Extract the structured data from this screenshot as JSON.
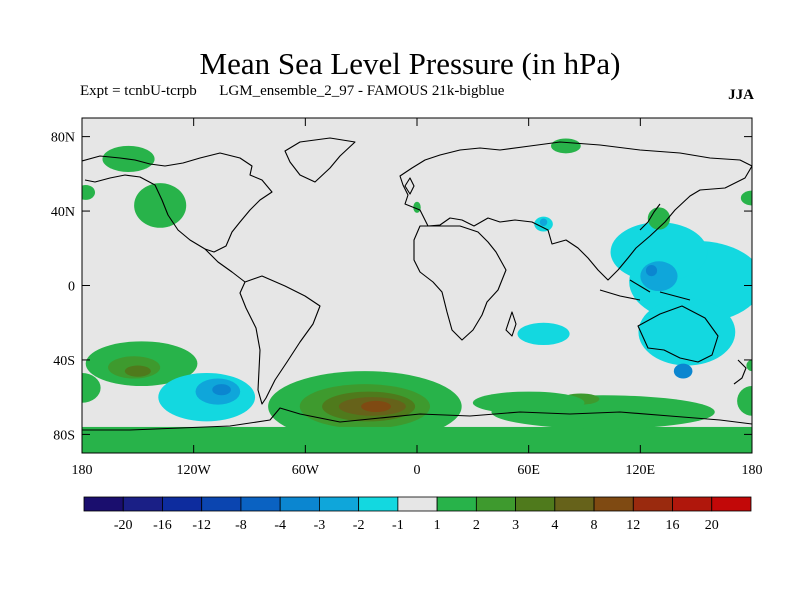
{
  "title": "Mean Sea Level Pressure (in hPa)",
  "subtitle": "Expt = tcnbU-tcrpb      LGM_ensemble_2_97 - FAMOUS 21k-bigblue",
  "season": "JJA",
  "map": {
    "lon_range": [
      -180,
      180
    ],
    "lat_range": [
      -90,
      90
    ],
    "lon_ticks": [
      {
        "value": -180,
        "label": "180"
      },
      {
        "value": -120,
        "label": "120W"
      },
      {
        "value": -60,
        "label": "60W"
      },
      {
        "value": 0,
        "label": "0"
      },
      {
        "value": 60,
        "label": "60E"
      },
      {
        "value": 120,
        "label": "120E"
      },
      {
        "value": 180,
        "label": "180"
      }
    ],
    "lat_ticks": [
      {
        "value": 80,
        "label": "80N"
      },
      {
        "value": 40,
        "label": "40N"
      },
      {
        "value": 0,
        "label": "0"
      },
      {
        "value": -40,
        "label": "40S"
      },
      {
        "value": -80,
        "label": "80S"
      }
    ],
    "colors": {
      "background": "#e6e6e6",
      "coast": "#000000"
    }
  },
  "colorbar": {
    "boundaries": [
      "-20",
      "-16",
      "-12",
      "-8",
      "-4",
      "-3",
      "-2",
      "-1",
      "1",
      "2",
      "3",
      "4",
      "8",
      "12",
      "16",
      "20"
    ],
    "colors": [
      "#1a0e6e",
      "#1a1f86",
      "#0d2c9e",
      "#0b45b0",
      "#0a62c2",
      "#0b86d0",
      "#0fa6da",
      "#13d8e0",
      "#e6e6e6",
      "#28b34a",
      "#3e9a2e",
      "#4f7a1c",
      "#66621a",
      "#7f4a12",
      "#9a2a0e",
      "#b0170c",
      "#c20808"
    ]
  },
  "regions": [
    {
      "shape": "ellipse",
      "lon": -155,
      "lat": 68,
      "rlon": 14,
      "rlat": 7,
      "level": 1
    },
    {
      "shape": "ellipse",
      "lon": -178,
      "lat": 50,
      "rlon": 5,
      "rlat": 4,
      "level": 1
    },
    {
      "shape": "ellipse",
      "lon": -138,
      "lat": 43,
      "rlon": 14,
      "rlat": 12,
      "level": 1
    },
    {
      "shape": "ellipse",
      "lon": -148,
      "lat": -42,
      "rlon": 30,
      "rlat": 12,
      "level": 1
    },
    {
      "shape": "ellipse",
      "lon": -180,
      "lat": -55,
      "rlon": 10,
      "rlat": 8,
      "level": 1
    },
    {
      "shape": "ellipse",
      "lon": -152,
      "lat": -44,
      "rlon": 14,
      "rlat": 6,
      "level": 2
    },
    {
      "shape": "ellipse",
      "lon": -150,
      "lat": -46,
      "rlon": 7,
      "rlat": 3,
      "level": 3
    },
    {
      "shape": "ellipse",
      "lon": -113,
      "lat": -60,
      "rlon": 26,
      "rlat": 13,
      "level": -1
    },
    {
      "shape": "ellipse",
      "lon": -107,
      "lat": -57,
      "rlon": 12,
      "rlat": 7,
      "level": -2
    },
    {
      "shape": "ellipse",
      "lon": -105,
      "lat": -56,
      "rlon": 5,
      "rlat": 3,
      "level": -3
    },
    {
      "shape": "ellipse",
      "lon": -28,
      "lat": -65,
      "rlon": 52,
      "rlat": 19,
      "level": 1
    },
    {
      "shape": "ellipse",
      "lon": -28,
      "lat": -65,
      "rlon": 35,
      "rlat": 12,
      "level": 2
    },
    {
      "shape": "ellipse",
      "lon": -26,
      "lat": -65,
      "rlon": 25,
      "rlat": 8,
      "level": 3
    },
    {
      "shape": "ellipse",
      "lon": -24,
      "lat": -65,
      "rlon": 18,
      "rlat": 5,
      "level": 4
    },
    {
      "shape": "ellipse",
      "lon": -22,
      "lat": -65,
      "rlon": 8,
      "rlat": 3,
      "level": 5
    },
    {
      "shape": "rect",
      "lon0": -180,
      "lon1": 180,
      "lat0": -90,
      "lat1": -76,
      "level": 1
    },
    {
      "shape": "ellipse",
      "lon": 100,
      "lat": -68,
      "rlon": 60,
      "rlat": 9,
      "level": 1
    },
    {
      "shape": "ellipse",
      "lon": 88,
      "lat": -61,
      "rlon": 10,
      "rlat": 3,
      "level": 2
    },
    {
      "shape": "ellipse",
      "lon": 60,
      "lat": -63,
      "rlon": 30,
      "rlat": 6,
      "level": 1
    },
    {
      "shape": "ellipse",
      "lon": 180,
      "lat": -62,
      "rlon": 8,
      "rlat": 8,
      "level": 1
    },
    {
      "shape": "ellipse",
      "lon": 150,
      "lat": 2,
      "rlon": 36,
      "rlat": 22,
      "level": -1
    },
    {
      "shape": "ellipse",
      "lon": 130,
      "lat": 18,
      "rlon": 26,
      "rlat": 16,
      "level": -1
    },
    {
      "shape": "ellipse",
      "lon": 145,
      "lat": -25,
      "rlon": 26,
      "rlat": 18,
      "level": -1
    },
    {
      "shape": "ellipse",
      "lon": 130,
      "lat": 5,
      "rlon": 10,
      "rlat": 8,
      "level": -2
    },
    {
      "shape": "ellipse",
      "lon": 126,
      "lat": 8,
      "rlon": 3,
      "rlat": 3,
      "level": -3
    },
    {
      "shape": "ellipse",
      "lon": 143,
      "lat": -46,
      "rlon": 5,
      "rlat": 4,
      "level": -3
    },
    {
      "shape": "ellipse",
      "lon": 68,
      "lat": -26,
      "rlon": 14,
      "rlat": 6,
      "level": -1
    },
    {
      "shape": "ellipse",
      "lon": 68,
      "lat": 33,
      "rlon": 5,
      "rlat": 4,
      "level": -1
    },
    {
      "shape": "ellipse",
      "lon": 68,
      "lat": 34,
      "rlon": 2,
      "rlat": 2,
      "level": -2
    },
    {
      "shape": "ellipse",
      "lon": 130,
      "lat": 36,
      "rlon": 6,
      "rlat": 6,
      "level": 1
    },
    {
      "shape": "ellipse",
      "lon": 180,
      "lat": 47,
      "rlon": 6,
      "rlat": 4,
      "level": 1
    },
    {
      "shape": "ellipse",
      "lon": 80,
      "lat": 75,
      "rlon": 8,
      "rlat": 4,
      "level": 1
    },
    {
      "shape": "ellipse",
      "lon": 0,
      "lat": 42,
      "rlon": 2,
      "rlat": 3,
      "level": 1
    },
    {
      "shape": "ellipse",
      "lon": 180,
      "lat": -43,
      "rlon": 3,
      "rlat": 3,
      "level": 1
    }
  ]
}
